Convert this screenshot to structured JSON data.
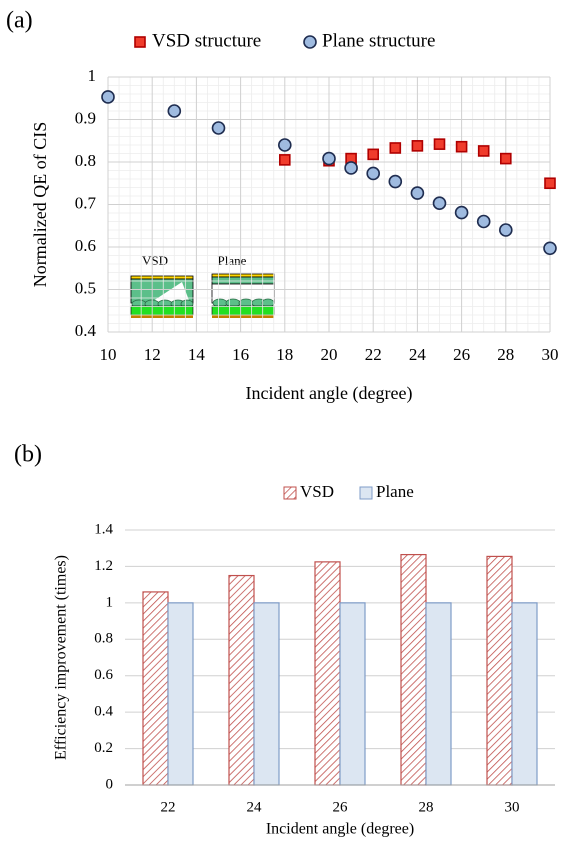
{
  "chart_data": [
    {
      "type": "scatter",
      "panel_label": "(a)",
      "x_label": "Incident angle (degree)",
      "y_label": "Normalized QE of CIS",
      "xlim": [
        10,
        30
      ],
      "xticks": [
        10,
        12,
        14,
        16,
        18,
        20,
        22,
        24,
        26,
        28,
        30
      ],
      "ylim": [
        0.4,
        1
      ],
      "yticks": [
        0.4,
        0.5,
        0.6,
        0.7,
        0.8,
        0.9,
        1
      ],
      "grid": true,
      "minor_grid": true,
      "legend": "top",
      "inset_labels": [
        "VSD",
        "Plane"
      ],
      "series": [
        {
          "name": "VSD structure",
          "color": "#f03c2c",
          "edgecolor": "#b00000",
          "marker": "square",
          "x": [
            18,
            20,
            21,
            22,
            23,
            24,
            25,
            26,
            27,
            28,
            30
          ],
          "values": [
            0.805,
            0.803,
            0.808,
            0.818,
            0.833,
            0.838,
            0.842,
            0.836,
            0.826,
            0.808,
            0.75
          ]
        },
        {
          "name": "Plane structure",
          "color": "#9fbbe0",
          "edgecolor": "#1f2d50",
          "marker": "circle",
          "x": [
            10,
            13,
            15,
            18,
            20,
            21,
            22,
            23,
            24,
            25,
            26,
            27,
            28,
            30
          ],
          "values": [
            0.953,
            0.92,
            0.88,
            0.84,
            0.808,
            0.786,
            0.773,
            0.754,
            0.727,
            0.703,
            0.681,
            0.66,
            0.64,
            0.597
          ]
        }
      ]
    },
    {
      "type": "bar",
      "panel_label": "(b)",
      "x_label": "Incident angle (degree)",
      "y_label": "Efficiency improvement (times)",
      "categories": [
        "22",
        "24",
        "26",
        "28",
        "30"
      ],
      "ylim": [
        0,
        1.4
      ],
      "yticks": [
        0,
        0.2,
        0.4,
        0.6,
        0.8,
        1,
        1.2,
        1.4
      ],
      "grid": true,
      "legend": "top",
      "series": [
        {
          "name": "VSD",
          "color": "#c0504d",
          "hatch": true,
          "values": [
            1.06,
            1.15,
            1.225,
            1.265,
            1.255
          ]
        },
        {
          "name": "Plane",
          "color": "#dce6f2",
          "edgecolor": "#7f9cc8",
          "values": [
            1,
            1,
            1,
            1,
            1
          ]
        }
      ]
    }
  ]
}
